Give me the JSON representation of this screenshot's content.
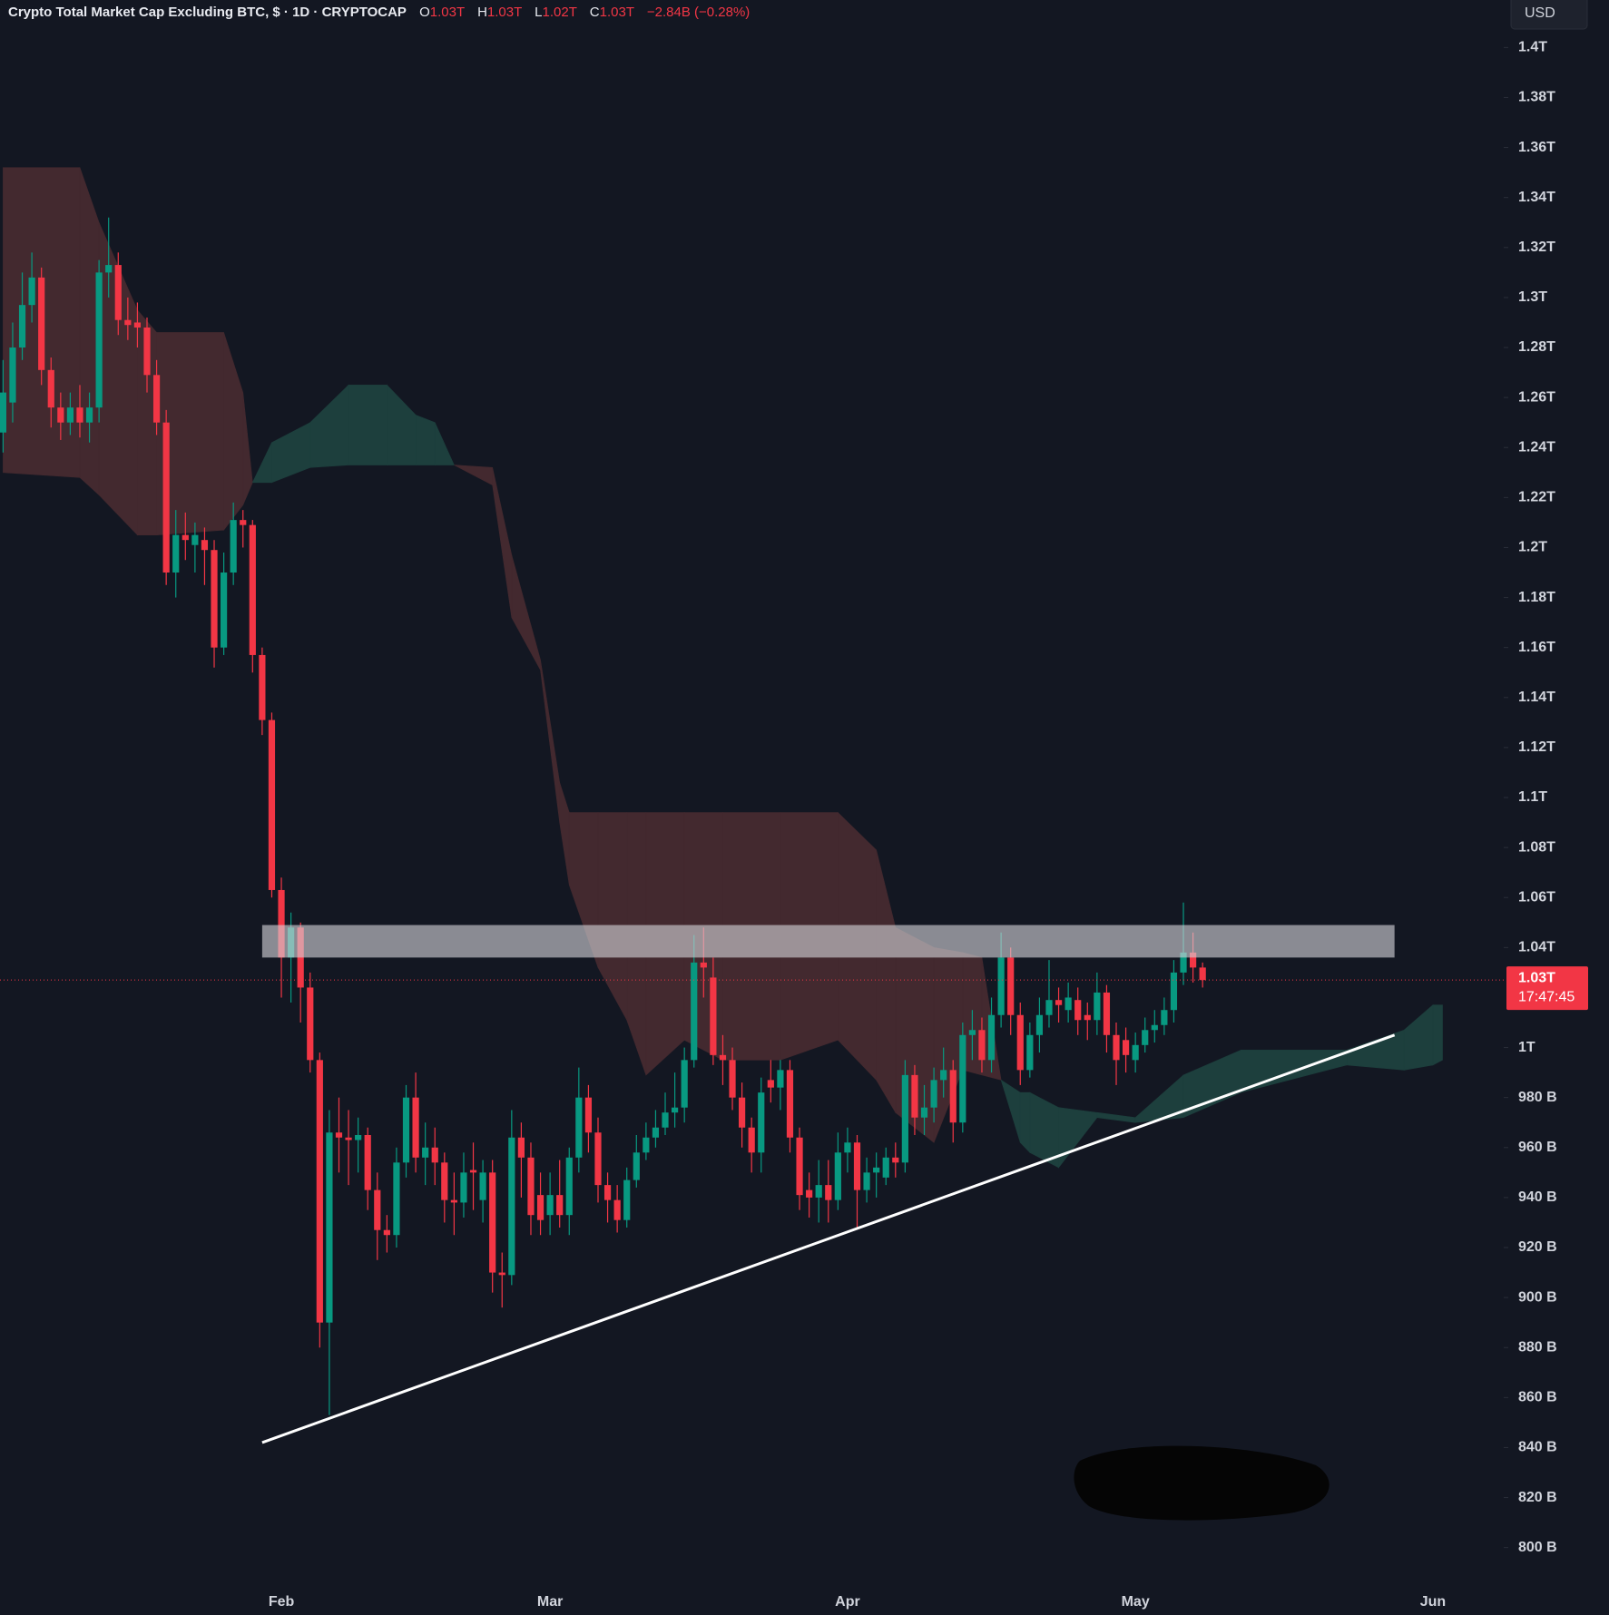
{
  "chart_data": {
    "type": "candlestick",
    "title": "Crypto Total Market Cap Excluding BTC, $ · 1D · CRYPTOCAP",
    "ohlc_labels": [
      {
        "key": "O",
        "value": "1.03T"
      },
      {
        "key": "H",
        "value": "1.03T"
      },
      {
        "key": "L",
        "value": "1.02T"
      },
      {
        "key": "C",
        "value": "1.03T"
      }
    ],
    "change": "−2.84B (−0.28%)",
    "currency": "USD",
    "last_price_label": "1.03T",
    "countdown": "17:47:45",
    "up_color": "#089981",
    "down_color": "#f23645",
    "grid": false,
    "categories": [
      null,
      null,
      null,
      null,
      null,
      null,
      null,
      null,
      null,
      null,
      null,
      null,
      null,
      null,
      null,
      null,
      null,
      null,
      null,
      null,
      null,
      null,
      null,
      null,
      null,
      null,
      null,
      null,
      null,
      "Feb",
      null,
      null,
      null,
      null,
      null,
      null,
      null,
      null,
      null,
      null,
      null,
      null,
      null,
      null,
      null,
      null,
      null,
      null,
      null,
      null,
      null,
      null,
      null,
      null,
      null,
      null,
      null,
      "Mar",
      null,
      null,
      null,
      null,
      null,
      null,
      null,
      null,
      null,
      null,
      null,
      null,
      null,
      null,
      null,
      null,
      null,
      null,
      null,
      null,
      null,
      null,
      null,
      null,
      null,
      null,
      null,
      null,
      null,
      null,
      "Apr",
      null,
      null,
      null,
      null,
      null,
      null,
      null,
      null,
      null,
      null,
      null,
      null,
      null,
      null,
      null,
      null,
      null,
      null,
      null,
      null,
      null,
      null,
      null,
      null,
      null,
      null,
      null,
      null,
      null,
      "May",
      null,
      null,
      null,
      null,
      null,
      null,
      null,
      null,
      null,
      null,
      null,
      null,
      null,
      null,
      null,
      null,
      null,
      null,
      null,
      null,
      null,
      null,
      null,
      null,
      null,
      null,
      null,
      null,
      null,
      null,
      "Jun",
      null,
      null,
      null,
      null,
      null,
      null
    ],
    "open": [
      1246,
      1258,
      1280,
      1297,
      1308,
      1271,
      1256,
      1250,
      1256,
      1250,
      1256,
      1310,
      1313,
      1291,
      1290,
      1288,
      1269,
      1250,
      1190,
      1205,
      1201,
      1203,
      1199,
      1160,
      1190,
      1211,
      1209,
      1157,
      1131,
      1063,
      1036,
      1048,
      1024,
      995,
      890,
      966,
      964,
      963,
      965,
      943,
      927,
      925,
      954,
      980,
      956,
      960,
      954,
      939,
      938,
      951,
      939,
      950,
      910,
      909,
      964,
      956,
      941,
      933,
      941,
      933,
      956,
      980,
      966,
      945,
      939,
      931,
      947,
      958,
      964,
      968,
      974,
      976,
      995,
      1034,
      1028,
      997,
      995,
      980,
      968,
      958,
      987,
      984,
      991,
      964,
      943,
      940,
      945,
      939,
      958,
      962,
      943,
      950,
      948,
      956,
      954,
      989,
      972,
      976,
      987,
      991,
      970,
      1005,
      1007,
      995,
      1013,
      1036,
      1013,
      991,
      1005,
      1013,
      1019,
      1015,
      1019,
      1013,
      1011,
      1022,
      1005,
      1003,
      995,
      1001,
      1007,
      1009,
      1015,
      1030,
      1038,
      1032,
      null,
      null,
      null,
      null,
      null,
      null,
      null,
      null,
      null,
      null,
      null,
      null,
      null,
      null,
      null,
      null,
      null,
      null,
      null,
      null,
      null,
      null,
      null,
      null,
      null,
      null,
      null,
      null,
      null,
      null
    ],
    "high": [
      1275,
      1290,
      1310,
      1318,
      1312,
      1276,
      1262,
      1262,
      1265,
      1262,
      1315,
      1332,
      1318,
      1300,
      1298,
      1292,
      1275,
      1255,
      1215,
      1214,
      1210,
      1208,
      1203,
      1198,
      1218,
      1215,
      1211,
      1160,
      1134,
      1068,
      1054,
      1050,
      1030,
      998,
      975,
      980,
      975,
      972,
      968,
      950,
      933,
      960,
      985,
      990,
      970,
      968,
      958,
      950,
      958,
      962,
      955,
      955,
      918,
      975,
      970,
      962,
      950,
      950,
      955,
      960,
      992,
      985,
      972,
      950,
      945,
      952,
      965,
      970,
      975,
      982,
      990,
      1000,
      1045,
      1048,
      1036,
      1005,
      1000,
      986,
      972,
      988,
      995,
      995,
      995,
      968,
      950,
      955,
      955,
      966,
      968,
      965,
      956,
      958,
      960,
      962,
      995,
      993,
      985,
      992,
      1000,
      995,
      1010,
      1015,
      1012,
      1020,
      1046,
      1040,
      1018,
      1010,
      1020,
      1035,
      1024,
      1026,
      1024,
      1018,
      1030,
      1025,
      1010,
      1008,
      1006,
      1012,
      1015,
      1020,
      1035,
      1058,
      1046,
      1034,
      null,
      null,
      null,
      null,
      null,
      null,
      null,
      null,
      null,
      null,
      null,
      null,
      null,
      null,
      null,
      null,
      null,
      null,
      null,
      null,
      null,
      null,
      null,
      null,
      null,
      null,
      null,
      null,
      null,
      null
    ],
    "low": [
      1238,
      1250,
      1275,
      1290,
      1265,
      1248,
      1243,
      1245,
      1244,
      1242,
      1250,
      1300,
      1285,
      1283,
      1280,
      1262,
      1245,
      1185,
      1180,
      1195,
      1190,
      1185,
      1152,
      1157,
      1185,
      1200,
      1150,
      1125,
      1060,
      1020,
      1018,
      1010,
      990,
      880,
      853,
      950,
      945,
      950,
      935,
      915,
      918,
      920,
      948,
      950,
      945,
      945,
      930,
      925,
      932,
      935,
      930,
      902,
      896,
      905,
      940,
      925,
      925,
      925,
      928,
      925,
      950,
      958,
      938,
      930,
      926,
      928,
      944,
      955,
      960,
      965,
      968,
      970,
      992,
      1020,
      993,
      985,
      975,
      960,
      950,
      950,
      978,
      975,
      958,
      935,
      932,
      930,
      930,
      935,
      950,
      928,
      938,
      940,
      945,
      948,
      950,
      965,
      965,
      970,
      980,
      962,
      966,
      995,
      990,
      990,
      1008,
      1005,
      985,
      988,
      998,
      1008,
      1010,
      1010,
      1005,
      1003,
      1005,
      998,
      985,
      990,
      990,
      998,
      1002,
      1005,
      1010,
      1025,
      1026,
      1024,
      null,
      null,
      null,
      null,
      null,
      null,
      null,
      null,
      null,
      null,
      null,
      null,
      null,
      null,
      null,
      null,
      null,
      null,
      null,
      null,
      null,
      null,
      null,
      null,
      null,
      null,
      null,
      null,
      null,
      null
    ],
    "close": [
      1262,
      1280,
      1297,
      1308,
      1271,
      1256,
      1250,
      1256,
      1250,
      1256,
      1310,
      1313,
      1291,
      1289,
      1288,
      1269,
      1250,
      1190,
      1205,
      1203,
      1205,
      1199,
      1160,
      1190,
      1211,
      1209,
      1157,
      1131,
      1063,
      1036,
      1048,
      1024,
      995,
      890,
      966,
      964,
      963,
      965,
      943,
      927,
      925,
      954,
      980,
      956,
      960,
      954,
      939,
      938,
      950,
      950,
      950,
      910,
      909,
      964,
      956,
      933,
      931,
      941,
      933,
      956,
      980,
      966,
      945,
      939,
      931,
      947,
      958,
      964,
      968,
      974,
      976,
      995,
      1034,
      1032,
      997,
      995,
      980,
      968,
      958,
      982,
      984,
      991,
      964,
      941,
      940,
      945,
      939,
      958,
      962,
      943,
      950,
      952,
      956,
      954,
      989,
      972,
      976,
      987,
      991,
      970,
      1005,
      1007,
      995,
      1013,
      1036,
      1013,
      991,
      1005,
      1013,
      1019,
      1017,
      1020,
      1011,
      1011,
      1022,
      1005,
      995,
      997,
      1001,
      1007,
      1009,
      1015,
      1030,
      1038,
      1032,
      1027,
      null,
      null,
      null,
      null,
      null,
      null,
      null,
      null,
      null,
      null,
      null,
      null,
      null,
      null,
      null,
      null,
      null,
      null,
      null,
      null,
      null,
      null,
      null,
      null,
      null,
      null,
      null,
      null,
      null,
      null
    ],
    "cloud": {
      "x": [
        0,
        8,
        10,
        14,
        16,
        23,
        25,
        26,
        28,
        32,
        36,
        40,
        43,
        45,
        47,
        51,
        53,
        56,
        58,
        59,
        62,
        65,
        67,
        71,
        75,
        81,
        87,
        91,
        93,
        97,
        100,
        102,
        104,
        106,
        107,
        110,
        114,
        118,
        123,
        129,
        140,
        146,
        149,
        150
      ],
      "span_a": [
        1230,
        1228,
        1221,
        1205,
        1205,
        1207,
        1217,
        1226,
        1242,
        1250,
        1265,
        1265,
        1253,
        1250,
        1233,
        1225,
        1172,
        1151,
        1090,
        1065,
        1032,
        1011,
        989,
        1003,
        995,
        995,
        1003,
        987,
        974,
        962,
        991,
        989,
        987,
        982,
        982,
        976,
        974,
        972,
        989,
        999,
        999,
        1007,
        1017,
        1017
      ],
      "span_b": [
        1352,
        1352,
        1330,
        1295,
        1286,
        1286,
        1262,
        1226,
        1226,
        1232,
        1233,
        1233,
        1233,
        1233,
        1233,
        1232,
        1197,
        1155,
        1106,
        1094,
        1094,
        1094,
        1094,
        1094,
        1094,
        1094,
        1094,
        1079,
        1048,
        1040,
        1038,
        1036,
        987,
        962,
        958,
        952,
        972,
        970,
        972,
        982,
        993,
        991,
        993,
        995
      ],
      "up_color": "#1d3f3d",
      "down_color": "#43292f"
    },
    "zone": {
      "x": [
        27,
        145
      ],
      "y": [
        1036,
        1049
      ],
      "color": "#d4d4d8"
    },
    "trendline": {
      "x": [
        27,
        145
      ],
      "y": [
        842,
        1005
      ],
      "color": "#ffffff"
    },
    "ylim": [
      785,
      1419
    ],
    "yticks": [
      {
        "value": 800,
        "label": "800 B"
      },
      {
        "value": 820,
        "label": "820 B"
      },
      {
        "value": 840,
        "label": "840 B"
      },
      {
        "value": 860,
        "label": "860 B"
      },
      {
        "value": 880,
        "label": "880 B"
      },
      {
        "value": 900,
        "label": "900 B"
      },
      {
        "value": 920,
        "label": "920 B"
      },
      {
        "value": 940,
        "label": "940 B"
      },
      {
        "value": 960,
        "label": "960 B"
      },
      {
        "value": 980,
        "label": "980 B"
      },
      {
        "value": 1000,
        "label": "1T"
      },
      {
        "value": 1040,
        "label": "1.04T"
      },
      {
        "value": 1060,
        "label": "1.06T"
      },
      {
        "value": 1080,
        "label": "1.08T"
      },
      {
        "value": 1100,
        "label": "1.1T"
      },
      {
        "value": 1120,
        "label": "1.12T"
      },
      {
        "value": 1140,
        "label": "1.14T"
      },
      {
        "value": 1160,
        "label": "1.16T"
      },
      {
        "value": 1180,
        "label": "1.18T"
      },
      {
        "value": 1200,
        "label": "1.2T"
      },
      {
        "value": 1220,
        "label": "1.22T"
      },
      {
        "value": 1240,
        "label": "1.24T"
      },
      {
        "value": 1260,
        "label": "1.26T"
      },
      {
        "value": 1280,
        "label": "1.28T"
      },
      {
        "value": 1300,
        "label": "1.3T"
      },
      {
        "value": 1320,
        "label": "1.32T"
      },
      {
        "value": 1340,
        "label": "1.34T"
      },
      {
        "value": 1360,
        "label": "1.36T"
      },
      {
        "value": 1380,
        "label": "1.38T"
      },
      {
        "value": 1400,
        "label": "1.4T"
      }
    ]
  }
}
